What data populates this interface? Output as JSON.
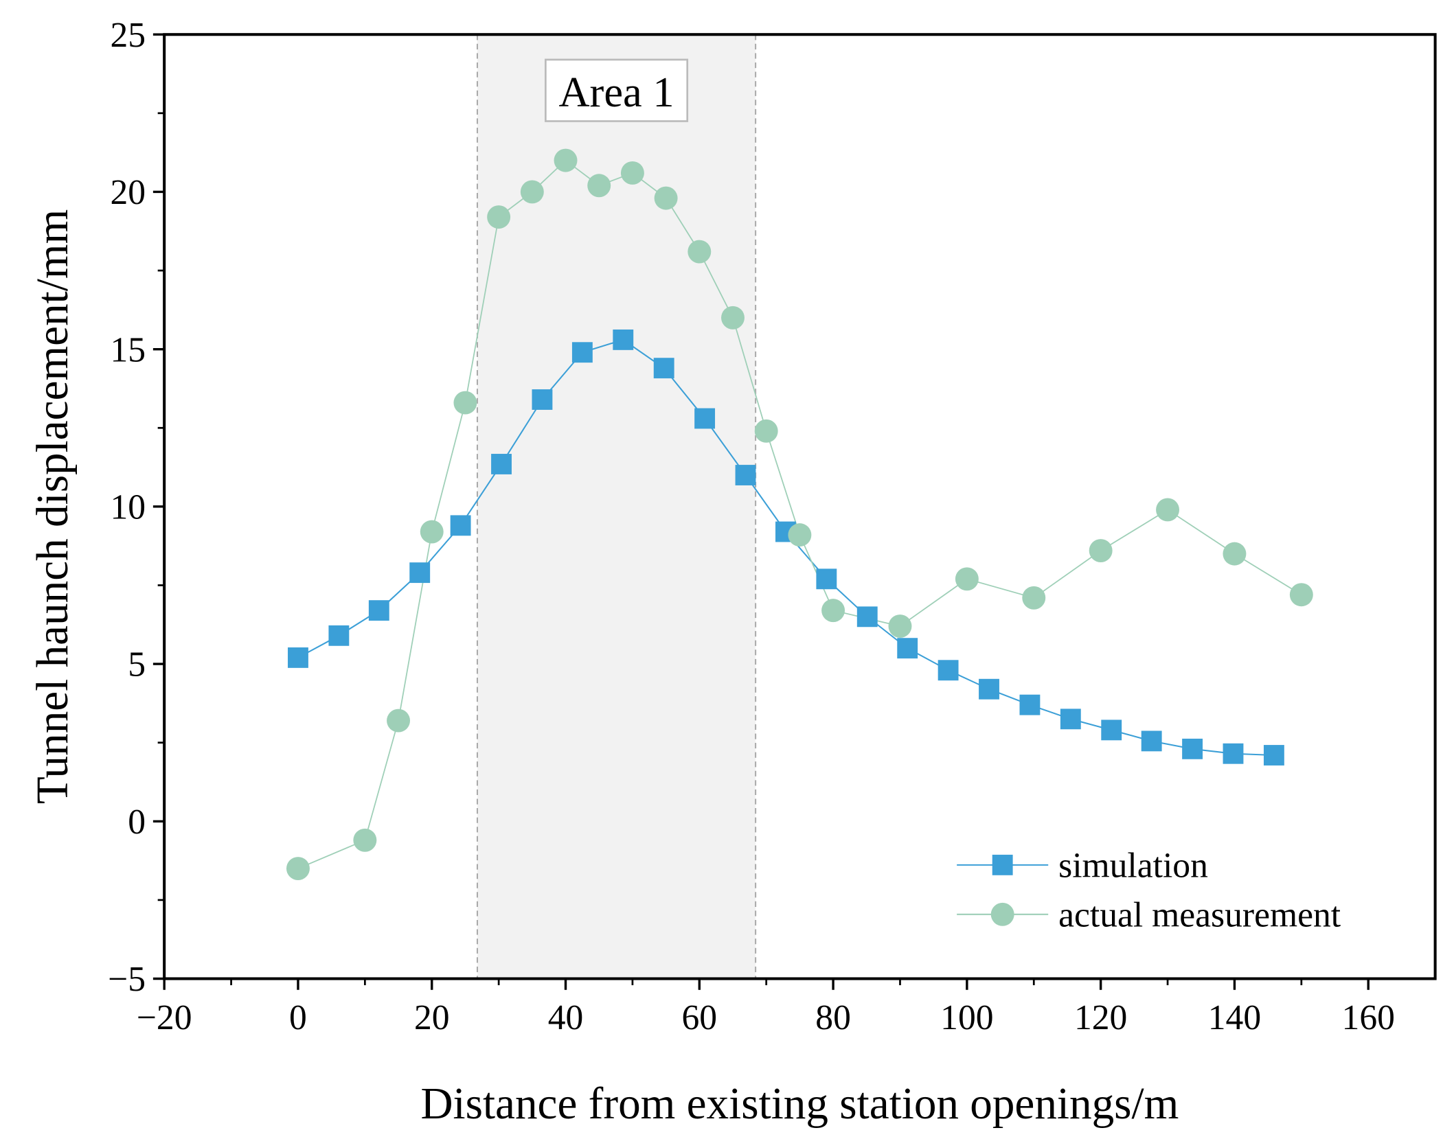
{
  "chart_data": {
    "type": "line",
    "title": "",
    "xlabel": "Distance from existing station openings/m",
    "ylabel": "Tunnel haunch displacement/mm",
    "xlim": [
      -20,
      170
    ],
    "ylim": [
      -5,
      25
    ],
    "xticks": [
      -20,
      0,
      20,
      40,
      60,
      80,
      100,
      120,
      140,
      160
    ],
    "xtick_labels": [
      "−20",
      "0",
      "20",
      "40",
      "60",
      "80",
      "100",
      "120",
      "140",
      "160"
    ],
    "yticks": [
      -5,
      0,
      5,
      10,
      15,
      20,
      25
    ],
    "ytick_labels": [
      "−5",
      "0",
      "5",
      "10",
      "15",
      "20",
      "25"
    ],
    "grid": false,
    "legend_position": "bottom-right",
    "annotation": {
      "label": "Area 1",
      "x_range": [
        26.8,
        68.4
      ]
    },
    "series": [
      {
        "name": "simulation",
        "marker": "square",
        "color": "#3b9fd7",
        "x": [
          0,
          6.1,
          12.1,
          18.2,
          24.3,
          30.4,
          36.5,
          42.5,
          48.6,
          54.7,
          60.8,
          66.9,
          72.9,
          79,
          85.1,
          91.1,
          97.2,
          103.3,
          109.4,
          115.5,
          121.6,
          127.6,
          133.7,
          139.8,
          145.9
        ],
        "y": [
          5.2,
          5.9,
          6.7,
          7.9,
          9.4,
          11.35,
          13.4,
          14.9,
          15.3,
          14.4,
          12.8,
          11.0,
          9.2,
          7.7,
          6.5,
          5.5,
          4.8,
          4.2,
          3.7,
          3.25,
          2.9,
          2.55,
          2.3,
          2.15,
          2.1
        ]
      },
      {
        "name": "actual measurement",
        "marker": "circle",
        "color": "#9ecfb7",
        "x": [
          0,
          10,
          15,
          20,
          25,
          30,
          35,
          40,
          45,
          50,
          55,
          60,
          65,
          70,
          75,
          80,
          90,
          100,
          110,
          120,
          130,
          140,
          150
        ],
        "y": [
          -1.5,
          -0.6,
          3.2,
          9.2,
          13.3,
          19.2,
          20.0,
          21.0,
          20.2,
          20.6,
          19.8,
          18.1,
          16.0,
          12.4,
          9.1,
          6.7,
          6.2,
          7.7,
          7.1,
          8.6,
          9.9,
          8.5,
          7.2
        ]
      }
    ]
  }
}
